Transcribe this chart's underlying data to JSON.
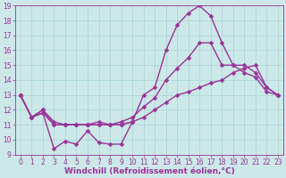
{
  "xlabel": "Windchill (Refroidissement éolien,°C)",
  "background_color": "#cce8e8",
  "line_color": "#993399",
  "grid_color": "#aad4d4",
  "xlim": [
    -0.5,
    23.5
  ],
  "ylim": [
    9,
    19
  ],
  "xticks": [
    0,
    1,
    2,
    3,
    4,
    5,
    6,
    7,
    8,
    9,
    10,
    11,
    12,
    13,
    14,
    15,
    16,
    17,
    18,
    19,
    20,
    21,
    22,
    23
  ],
  "yticks": [
    9,
    10,
    11,
    12,
    13,
    14,
    15,
    16,
    17,
    18,
    19
  ],
  "curve1_x": [
    0,
    1,
    2,
    3,
    4,
    5,
    6,
    7,
    8,
    9,
    10
  ],
  "curve1_y": [
    13.0,
    11.5,
    11.8,
    9.4,
    9.9,
    9.7,
    10.6,
    9.8,
    9.7,
    9.7,
    11.2
  ],
  "curve2_x": [
    0,
    1,
    2,
    3,
    4,
    5,
    6,
    7,
    8,
    9,
    10,
    11,
    12,
    13,
    14,
    15,
    16,
    17,
    18,
    19,
    20,
    21,
    22,
    23
  ],
  "curve2_y": [
    13.0,
    11.5,
    11.8,
    11.0,
    11.0,
    11.0,
    11.0,
    11.0,
    11.0,
    11.0,
    11.2,
    13.0,
    13.5,
    16.0,
    17.7,
    18.5,
    19.0,
    18.3,
    16.5,
    15.0,
    14.5,
    14.2,
    13.2,
    13.0
  ],
  "curve3_x": [
    0,
    1,
    2,
    3,
    4,
    5,
    6,
    7,
    8,
    9,
    10,
    11,
    12,
    13,
    14,
    15,
    16,
    17,
    18,
    19,
    20,
    21,
    22,
    23
  ],
  "curve3_y": [
    13.0,
    11.5,
    12.0,
    11.2,
    11.0,
    11.0,
    11.0,
    11.2,
    11.0,
    11.2,
    11.5,
    12.2,
    12.8,
    14.0,
    14.8,
    15.5,
    16.5,
    16.5,
    15.0,
    15.0,
    15.0,
    14.5,
    13.5,
    13.0
  ],
  "curve4_x": [
    0,
    1,
    2,
    3,
    4,
    5,
    6,
    7,
    8,
    9,
    10,
    11,
    12,
    13,
    14,
    15,
    16,
    17,
    18,
    19,
    20,
    21,
    22,
    23
  ],
  "curve4_y": [
    13.0,
    11.5,
    12.0,
    11.0,
    11.0,
    11.0,
    11.0,
    11.0,
    11.0,
    11.0,
    11.2,
    11.5,
    12.0,
    12.5,
    13.0,
    13.2,
    13.5,
    13.8,
    14.0,
    14.5,
    14.8,
    15.0,
    13.5,
    13.0
  ],
  "marker": "D",
  "markersize": 2.5,
  "linewidth": 1.0,
  "tick_fontsize": 5.5,
  "label_fontsize": 6.5
}
